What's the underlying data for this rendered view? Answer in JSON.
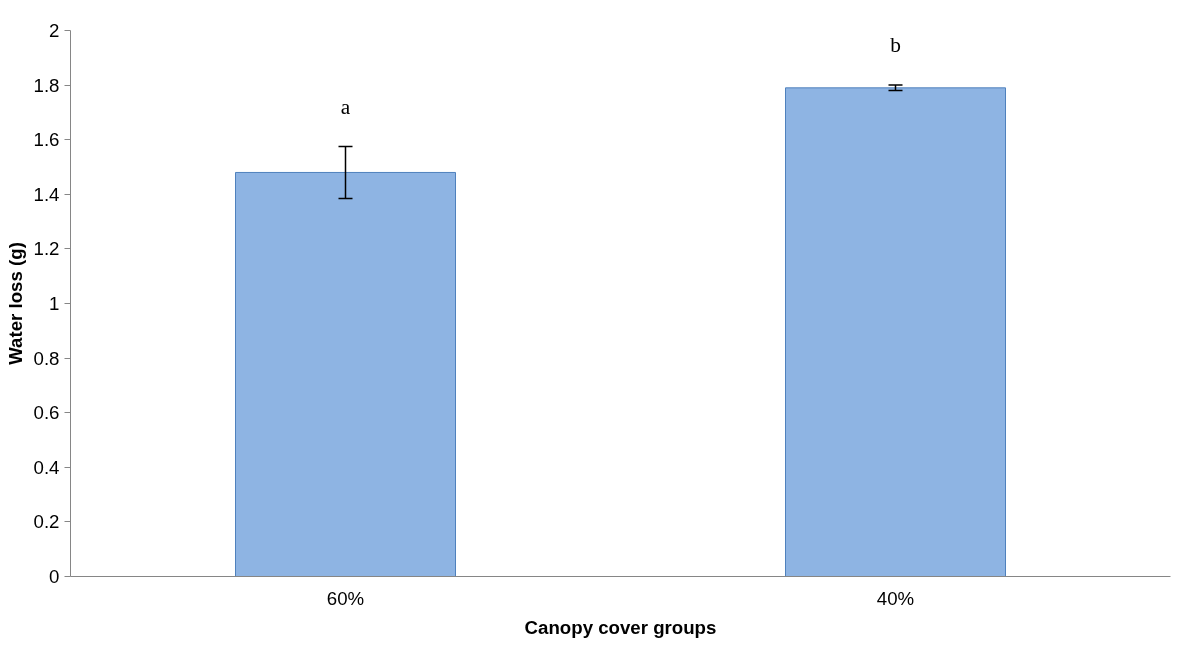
{
  "chart_data": {
    "type": "bar",
    "xlabel": "Canopy cover groups",
    "ylabel": "Water loss (g)",
    "categories": [
      "60%",
      "40%"
    ],
    "series": [
      {
        "color": "#8eb4e3",
        "values": [
          1.48,
          1.79
        ],
        "errors": [
          0.095,
          0.01
        ]
      }
    ],
    "ylim": [
      0,
      2
    ],
    "yticks": [
      0,
      0.2,
      0.4,
      0.6,
      0.8,
      1,
      1.2,
      1.4,
      1.6,
      1.8,
      2
    ],
    "grid": false,
    "annotations": [
      "a",
      "b"
    ]
  }
}
